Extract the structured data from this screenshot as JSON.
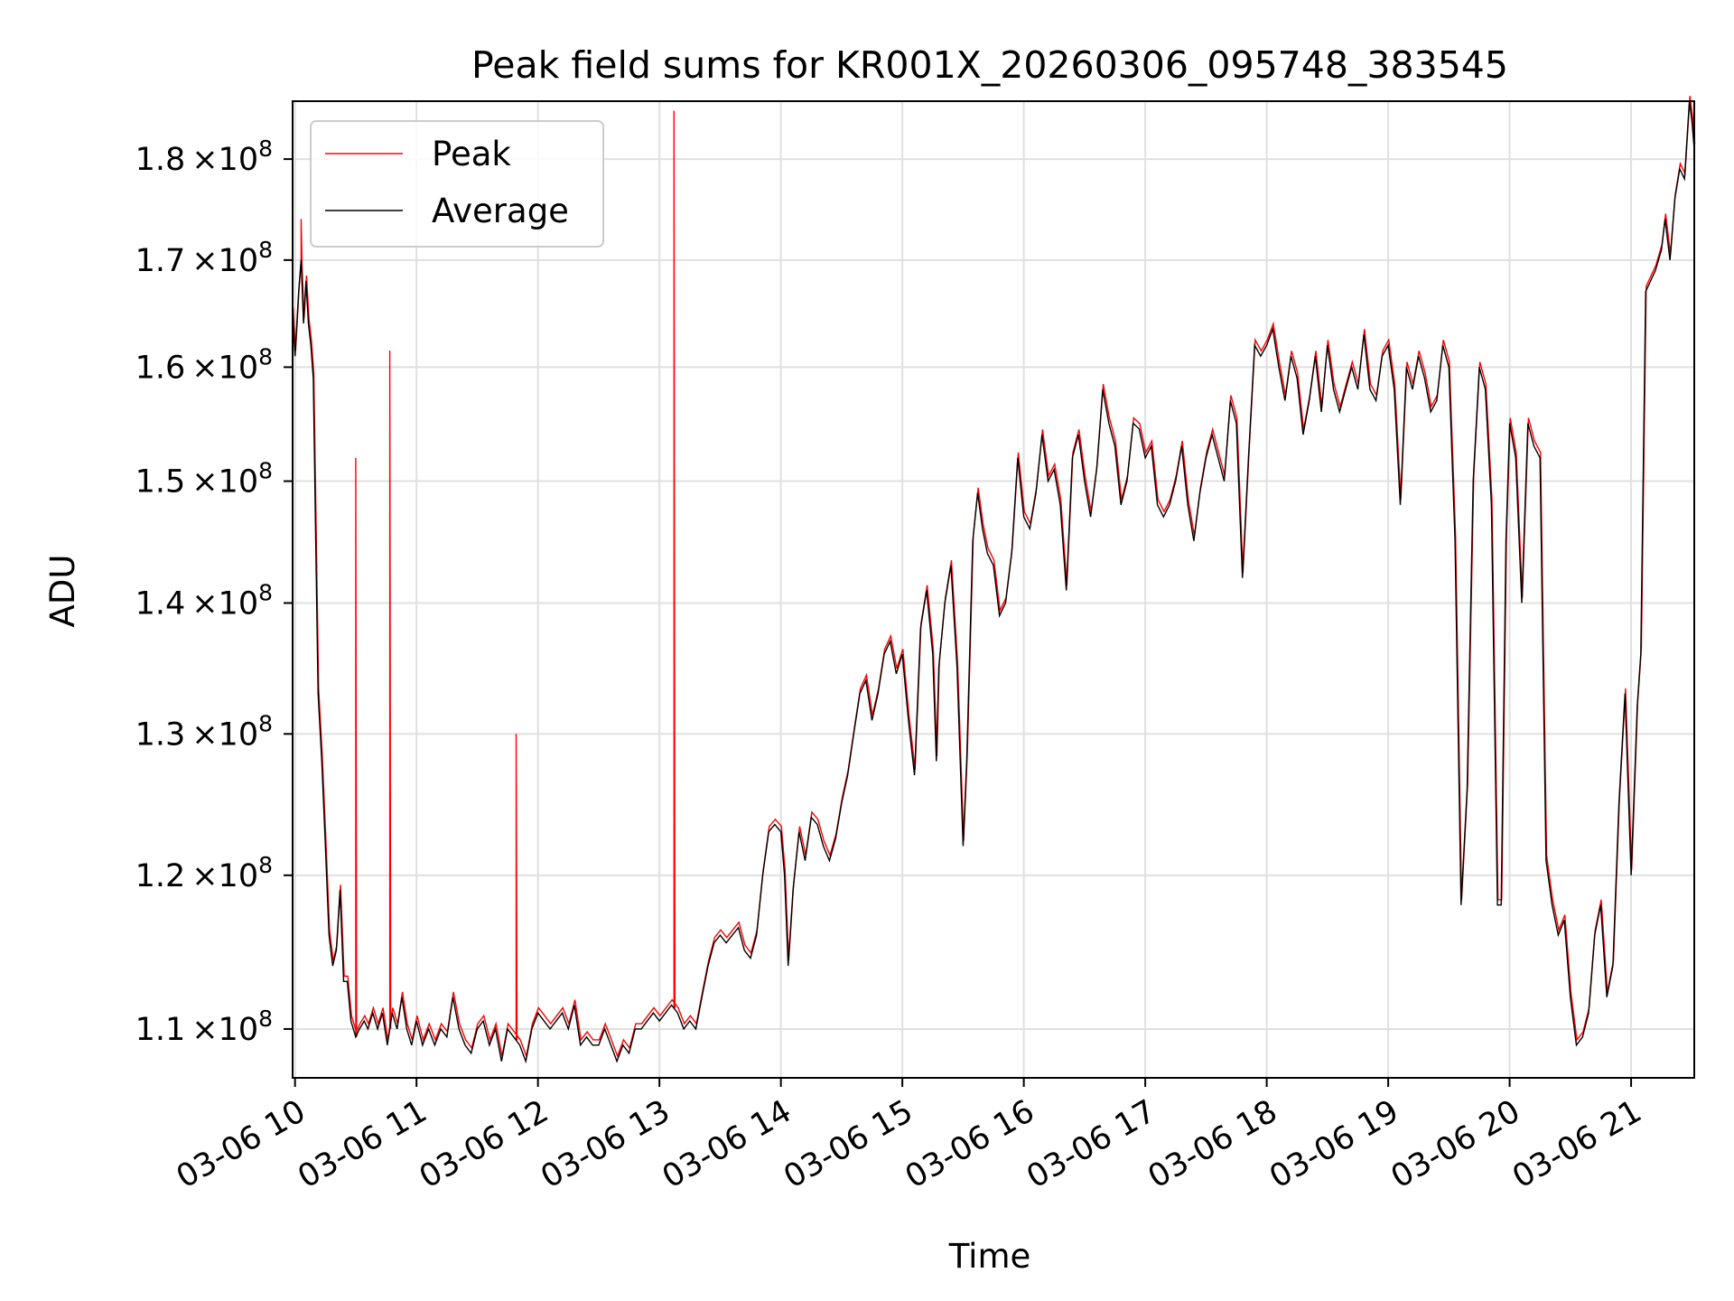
{
  "chart_data": {
    "type": "line",
    "title": "Peak field sums for KR001X_20260306_095748_383545",
    "xlabel": "Time",
    "ylabel": "ADU",
    "yscale": "log",
    "ylim": [
      107000000,
      186000000
    ],
    "xlim_hours": [
      9.98,
      21.52
    ],
    "grid": true,
    "legend_position": "upper-left",
    "x_ticks": [
      {
        "value": 10,
        "label": "03-06 10"
      },
      {
        "value": 11,
        "label": "03-06 11"
      },
      {
        "value": 12,
        "label": "03-06 12"
      },
      {
        "value": 13,
        "label": "03-06 13"
      },
      {
        "value": 14,
        "label": "03-06 14"
      },
      {
        "value": 15,
        "label": "03-06 15"
      },
      {
        "value": 16,
        "label": "03-06 16"
      },
      {
        "value": 17,
        "label": "03-06 17"
      },
      {
        "value": 18,
        "label": "03-06 18"
      },
      {
        "value": 19,
        "label": "03-06 19"
      },
      {
        "value": 20,
        "label": "03-06 20"
      },
      {
        "value": 21,
        "label": "03-06 21"
      }
    ],
    "y_ticks": [
      {
        "value": 110000000,
        "mantissa": "1.1",
        "exponent": "8"
      },
      {
        "value": 120000000,
        "mantissa": "1.2",
        "exponent": "8"
      },
      {
        "value": 130000000,
        "mantissa": "1.3",
        "exponent": "8"
      },
      {
        "value": 140000000,
        "mantissa": "1.4",
        "exponent": "8"
      },
      {
        "value": 150000000,
        "mantissa": "1.5",
        "exponent": "8"
      },
      {
        "value": 160000000,
        "mantissa": "1.6",
        "exponent": "8"
      },
      {
        "value": 170000000,
        "mantissa": "1.7",
        "exponent": "8"
      },
      {
        "value": 180000000,
        "mantissa": "1.8",
        "exponent": "8"
      }
    ],
    "y_tick_times_sign": "×10",
    "series": [
      {
        "name": "Peak",
        "color": "#ff0000"
      },
      {
        "name": "Average",
        "color": "#000000"
      }
    ],
    "average_points_hours_M": [
      [
        9.98,
        165
      ],
      [
        10.0,
        161
      ],
      [
        10.03,
        167
      ],
      [
        10.05,
        170
      ],
      [
        10.07,
        164
      ],
      [
        10.09,
        168
      ],
      [
        10.11,
        164
      ],
      [
        10.13,
        162
      ],
      [
        10.15,
        159
      ],
      [
        10.17,
        145
      ],
      [
        10.19,
        133
      ],
      [
        10.22,
        128
      ],
      [
        10.25,
        122
      ],
      [
        10.28,
        116
      ],
      [
        10.31,
        114
      ],
      [
        10.34,
        115
      ],
      [
        10.37,
        119
      ],
      [
        10.4,
        113
      ],
      [
        10.43,
        113
      ],
      [
        10.46,
        110.5
      ],
      [
        10.5,
        109.5
      ],
      [
        10.53,
        110
      ],
      [
        10.57,
        110.5
      ],
      [
        10.6,
        110
      ],
      [
        10.64,
        111
      ],
      [
        10.68,
        110
      ],
      [
        10.72,
        111
      ],
      [
        10.76,
        109
      ],
      [
        10.8,
        111
      ],
      [
        10.84,
        110
      ],
      [
        10.88,
        112
      ],
      [
        10.92,
        110
      ],
      [
        10.96,
        109
      ],
      [
        11.0,
        110.5
      ],
      [
        11.05,
        109
      ],
      [
        11.1,
        110
      ],
      [
        11.15,
        109
      ],
      [
        11.2,
        110
      ],
      [
        11.25,
        109.5
      ],
      [
        11.3,
        112
      ],
      [
        11.35,
        110
      ],
      [
        11.4,
        109
      ],
      [
        11.45,
        108.5
      ],
      [
        11.5,
        110
      ],
      [
        11.55,
        110.5
      ],
      [
        11.6,
        109
      ],
      [
        11.65,
        110
      ],
      [
        11.7,
        108
      ],
      [
        11.75,
        110
      ],
      [
        11.8,
        109.5
      ],
      [
        11.85,
        109
      ],
      [
        11.9,
        108
      ],
      [
        11.95,
        110
      ],
      [
        12.0,
        111
      ],
      [
        12.05,
        110.5
      ],
      [
        12.1,
        110
      ],
      [
        12.15,
        110.5
      ],
      [
        12.2,
        111
      ],
      [
        12.25,
        110
      ],
      [
        12.3,
        111.5
      ],
      [
        12.35,
        109
      ],
      [
        12.4,
        109.5
      ],
      [
        12.45,
        109
      ],
      [
        12.5,
        109
      ],
      [
        12.55,
        110
      ],
      [
        12.6,
        109
      ],
      [
        12.65,
        108
      ],
      [
        12.7,
        109
      ],
      [
        12.75,
        108.5
      ],
      [
        12.8,
        110
      ],
      [
        12.85,
        110
      ],
      [
        12.9,
        110.5
      ],
      [
        12.95,
        111
      ],
      [
        13.0,
        110.5
      ],
      [
        13.05,
        111
      ],
      [
        13.1,
        111.5
      ],
      [
        13.15,
        111
      ],
      [
        13.2,
        110
      ],
      [
        13.25,
        110.5
      ],
      [
        13.3,
        110
      ],
      [
        13.35,
        112
      ],
      [
        13.4,
        114
      ],
      [
        13.45,
        115.5
      ],
      [
        13.5,
        116
      ],
      [
        13.55,
        115.5
      ],
      [
        13.6,
        116
      ],
      [
        13.65,
        116.5
      ],
      [
        13.7,
        115
      ],
      [
        13.75,
        114.5
      ],
      [
        13.8,
        116
      ],
      [
        13.85,
        120
      ],
      [
        13.9,
        123
      ],
      [
        13.95,
        123.5
      ],
      [
        14.0,
        123
      ],
      [
        14.03,
        120
      ],
      [
        14.06,
        114
      ],
      [
        14.1,
        119
      ],
      [
        14.15,
        123
      ],
      [
        14.2,
        121
      ],
      [
        14.25,
        124
      ],
      [
        14.3,
        123.5
      ],
      [
        14.35,
        122
      ],
      [
        14.4,
        121
      ],
      [
        14.45,
        122.5
      ],
      [
        14.5,
        125
      ],
      [
        14.55,
        127
      ],
      [
        14.6,
        130
      ],
      [
        14.65,
        133
      ],
      [
        14.7,
        134
      ],
      [
        14.75,
        131
      ],
      [
        14.8,
        133
      ],
      [
        14.85,
        136
      ],
      [
        14.9,
        137
      ],
      [
        14.95,
        134.5
      ],
      [
        15.0,
        136
      ],
      [
        15.05,
        131
      ],
      [
        15.1,
        127
      ],
      [
        15.15,
        138
      ],
      [
        15.2,
        141
      ],
      [
        15.25,
        136
      ],
      [
        15.28,
        128
      ],
      [
        15.3,
        135
      ],
      [
        15.35,
        140
      ],
      [
        15.4,
        143
      ],
      [
        15.45,
        135
      ],
      [
        15.5,
        122
      ],
      [
        15.53,
        128
      ],
      [
        15.58,
        145
      ],
      [
        15.62,
        149
      ],
      [
        15.66,
        146
      ],
      [
        15.7,
        144
      ],
      [
        15.75,
        143
      ],
      [
        15.8,
        139
      ],
      [
        15.85,
        140
      ],
      [
        15.9,
        144
      ],
      [
        15.95,
        152
      ],
      [
        16.0,
        147
      ],
      [
        16.05,
        146
      ],
      [
        16.1,
        149
      ],
      [
        16.15,
        154
      ],
      [
        16.2,
        150
      ],
      [
        16.25,
        151
      ],
      [
        16.3,
        148
      ],
      [
        16.35,
        141
      ],
      [
        16.4,
        152
      ],
      [
        16.45,
        154
      ],
      [
        16.5,
        150
      ],
      [
        16.55,
        147
      ],
      [
        16.6,
        151
      ],
      [
        16.65,
        158
      ],
      [
        16.7,
        155
      ],
      [
        16.75,
        153
      ],
      [
        16.8,
        148
      ],
      [
        16.85,
        150
      ],
      [
        16.9,
        155
      ],
      [
        16.95,
        154.5
      ],
      [
        17.0,
        152
      ],
      [
        17.05,
        153
      ],
      [
        17.1,
        148
      ],
      [
        17.15,
        147
      ],
      [
        17.2,
        148
      ],
      [
        17.25,
        150
      ],
      [
        17.3,
        153
      ],
      [
        17.35,
        148
      ],
      [
        17.4,
        145
      ],
      [
        17.45,
        149
      ],
      [
        17.5,
        152
      ],
      [
        17.55,
        154
      ],
      [
        17.6,
        152
      ],
      [
        17.65,
        150
      ],
      [
        17.7,
        157
      ],
      [
        17.75,
        155
      ],
      [
        17.8,
        142
      ],
      [
        17.85,
        152
      ],
      [
        17.9,
        162
      ],
      [
        17.95,
        161
      ],
      [
        18.0,
        162
      ],
      [
        18.05,
        163.5
      ],
      [
        18.1,
        160
      ],
      [
        18.15,
        157
      ],
      [
        18.2,
        161
      ],
      [
        18.25,
        159
      ],
      [
        18.3,
        154
      ],
      [
        18.35,
        157
      ],
      [
        18.4,
        161
      ],
      [
        18.45,
        156
      ],
      [
        18.5,
        162
      ],
      [
        18.55,
        158
      ],
      [
        18.6,
        156
      ],
      [
        18.65,
        158
      ],
      [
        18.7,
        160
      ],
      [
        18.75,
        158
      ],
      [
        18.8,
        163
      ],
      [
        18.85,
        158
      ],
      [
        18.9,
        157
      ],
      [
        18.95,
        161
      ],
      [
        19.0,
        162
      ],
      [
        19.05,
        158
      ],
      [
        19.1,
        148
      ],
      [
        19.15,
        160
      ],
      [
        19.2,
        158
      ],
      [
        19.25,
        161
      ],
      [
        19.3,
        159
      ],
      [
        19.35,
        156
      ],
      [
        19.4,
        157
      ],
      [
        19.45,
        162
      ],
      [
        19.5,
        160
      ],
      [
        19.55,
        145
      ],
      [
        19.6,
        118
      ],
      [
        19.65,
        126
      ],
      [
        19.7,
        150
      ],
      [
        19.75,
        160
      ],
      [
        19.8,
        158
      ],
      [
        19.85,
        148
      ],
      [
        19.9,
        118
      ],
      [
        19.93,
        118
      ],
      [
        19.97,
        145
      ],
      [
        20.0,
        155
      ],
      [
        20.05,
        152
      ],
      [
        20.1,
        140
      ],
      [
        20.15,
        155
      ],
      [
        20.2,
        153
      ],
      [
        20.25,
        152
      ],
      [
        20.3,
        121
      ],
      [
        20.35,
        118
      ],
      [
        20.4,
        116
      ],
      [
        20.45,
        117
      ],
      [
        20.5,
        112
      ],
      [
        20.55,
        109
      ],
      [
        20.6,
        109.5
      ],
      [
        20.65,
        111
      ],
      [
        20.7,
        116
      ],
      [
        20.75,
        118
      ],
      [
        20.8,
        112
      ],
      [
        20.85,
        114
      ],
      [
        20.9,
        125
      ],
      [
        20.95,
        133
      ],
      [
        21.0,
        120
      ],
      [
        21.05,
        132
      ],
      [
        21.08,
        136
      ],
      [
        21.12,
        167
      ],
      [
        21.16,
        168
      ],
      [
        21.2,
        169
      ],
      [
        21.25,
        171
      ],
      [
        21.28,
        174
      ],
      [
        21.32,
        170
      ],
      [
        21.36,
        176
      ],
      [
        21.4,
        179
      ],
      [
        21.44,
        178
      ],
      [
        21.48,
        186
      ],
      [
        21.5,
        184
      ],
      [
        21.52,
        181
      ]
    ],
    "peak_spikes_hours_M": [
      [
        10.05,
        174
      ],
      [
        10.5,
        152
      ],
      [
        10.78,
        161.5
      ],
      [
        11.82,
        130
      ],
      [
        13.12,
        185
      ]
    ]
  },
  "legend": {
    "peak_label": "Peak",
    "average_label": "Average"
  }
}
